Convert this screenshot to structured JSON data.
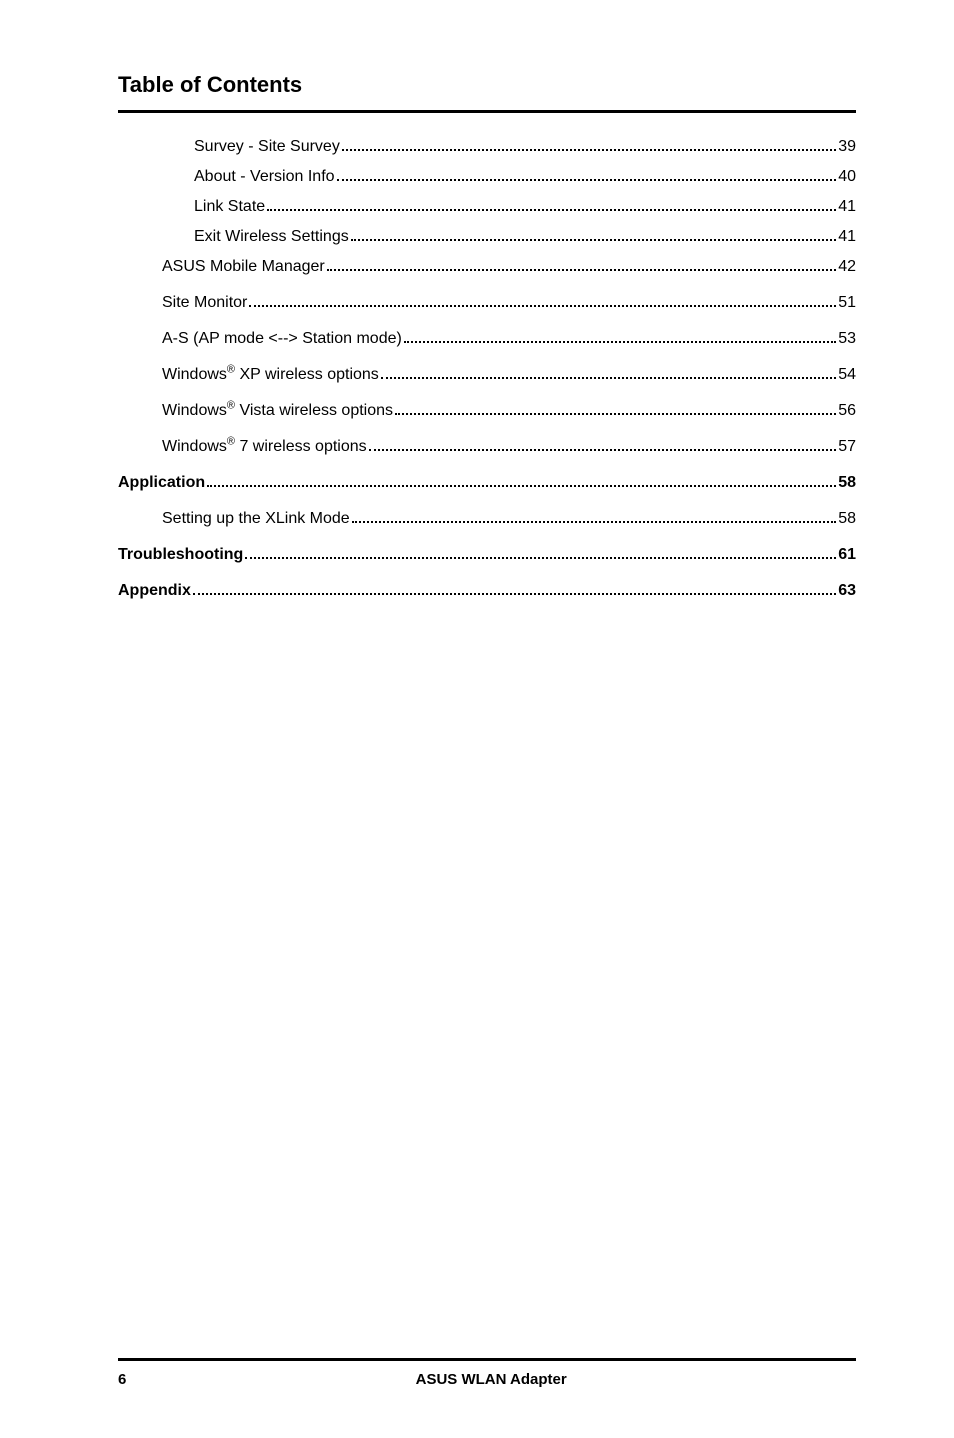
{
  "page_title": "Table of Contents",
  "entries": [
    {
      "label": "Survey - Site Survey",
      "page": "39",
      "indent": 2,
      "bold": false,
      "spaced": false,
      "has_reg": false
    },
    {
      "label": "About - Version Info",
      "page": "40",
      "indent": 2,
      "bold": false,
      "spaced": false,
      "has_reg": false
    },
    {
      "label": "Link State",
      "page": "41",
      "indent": 2,
      "bold": false,
      "spaced": false,
      "has_reg": false
    },
    {
      "label": "Exit Wireless Settings",
      "page": "41",
      "indent": 2,
      "bold": false,
      "spaced": false,
      "has_reg": false
    },
    {
      "label": "ASUS Mobile Manager",
      "page": "42",
      "indent": 1,
      "bold": false,
      "spaced": true,
      "has_reg": false
    },
    {
      "label": "Site Monitor",
      "page": "51",
      "indent": 1,
      "bold": false,
      "spaced": true,
      "has_reg": false
    },
    {
      "label": "A-S (AP mode <--> Station mode)",
      "page": "53",
      "indent": 1,
      "bold": false,
      "spaced": true,
      "has_reg": false
    },
    {
      "label_pre": "Windows",
      "label_post": " XP wireless options",
      "page": "54",
      "indent": 1,
      "bold": false,
      "spaced": true,
      "has_reg": true
    },
    {
      "label_pre": "Windows",
      "label_post": " Vista wireless options",
      "page": "56",
      "indent": 1,
      "bold": false,
      "spaced": true,
      "has_reg": true
    },
    {
      "label_pre": "Windows",
      "label_post": " 7 wireless options",
      "page": "57",
      "indent": 1,
      "bold": false,
      "spaced": true,
      "has_reg": true
    },
    {
      "label": "Application",
      "page": "58",
      "indent": 0,
      "bold": true,
      "spaced": true,
      "has_reg": false
    },
    {
      "label": "Setting up the XLink Mode",
      "page": "58",
      "indent": 1,
      "bold": false,
      "spaced": true,
      "has_reg": false
    },
    {
      "label": "Troubleshooting",
      "page": "61",
      "indent": 0,
      "bold": true,
      "spaced": true,
      "has_reg": false
    },
    {
      "label": "Appendix",
      "page": "63",
      "indent": 0,
      "bold": true,
      "spaced": true,
      "has_reg": false
    }
  ],
  "reg_symbol": "®",
  "footer": {
    "page_number": "6",
    "title": "ASUS WLAN Adapter"
  }
}
